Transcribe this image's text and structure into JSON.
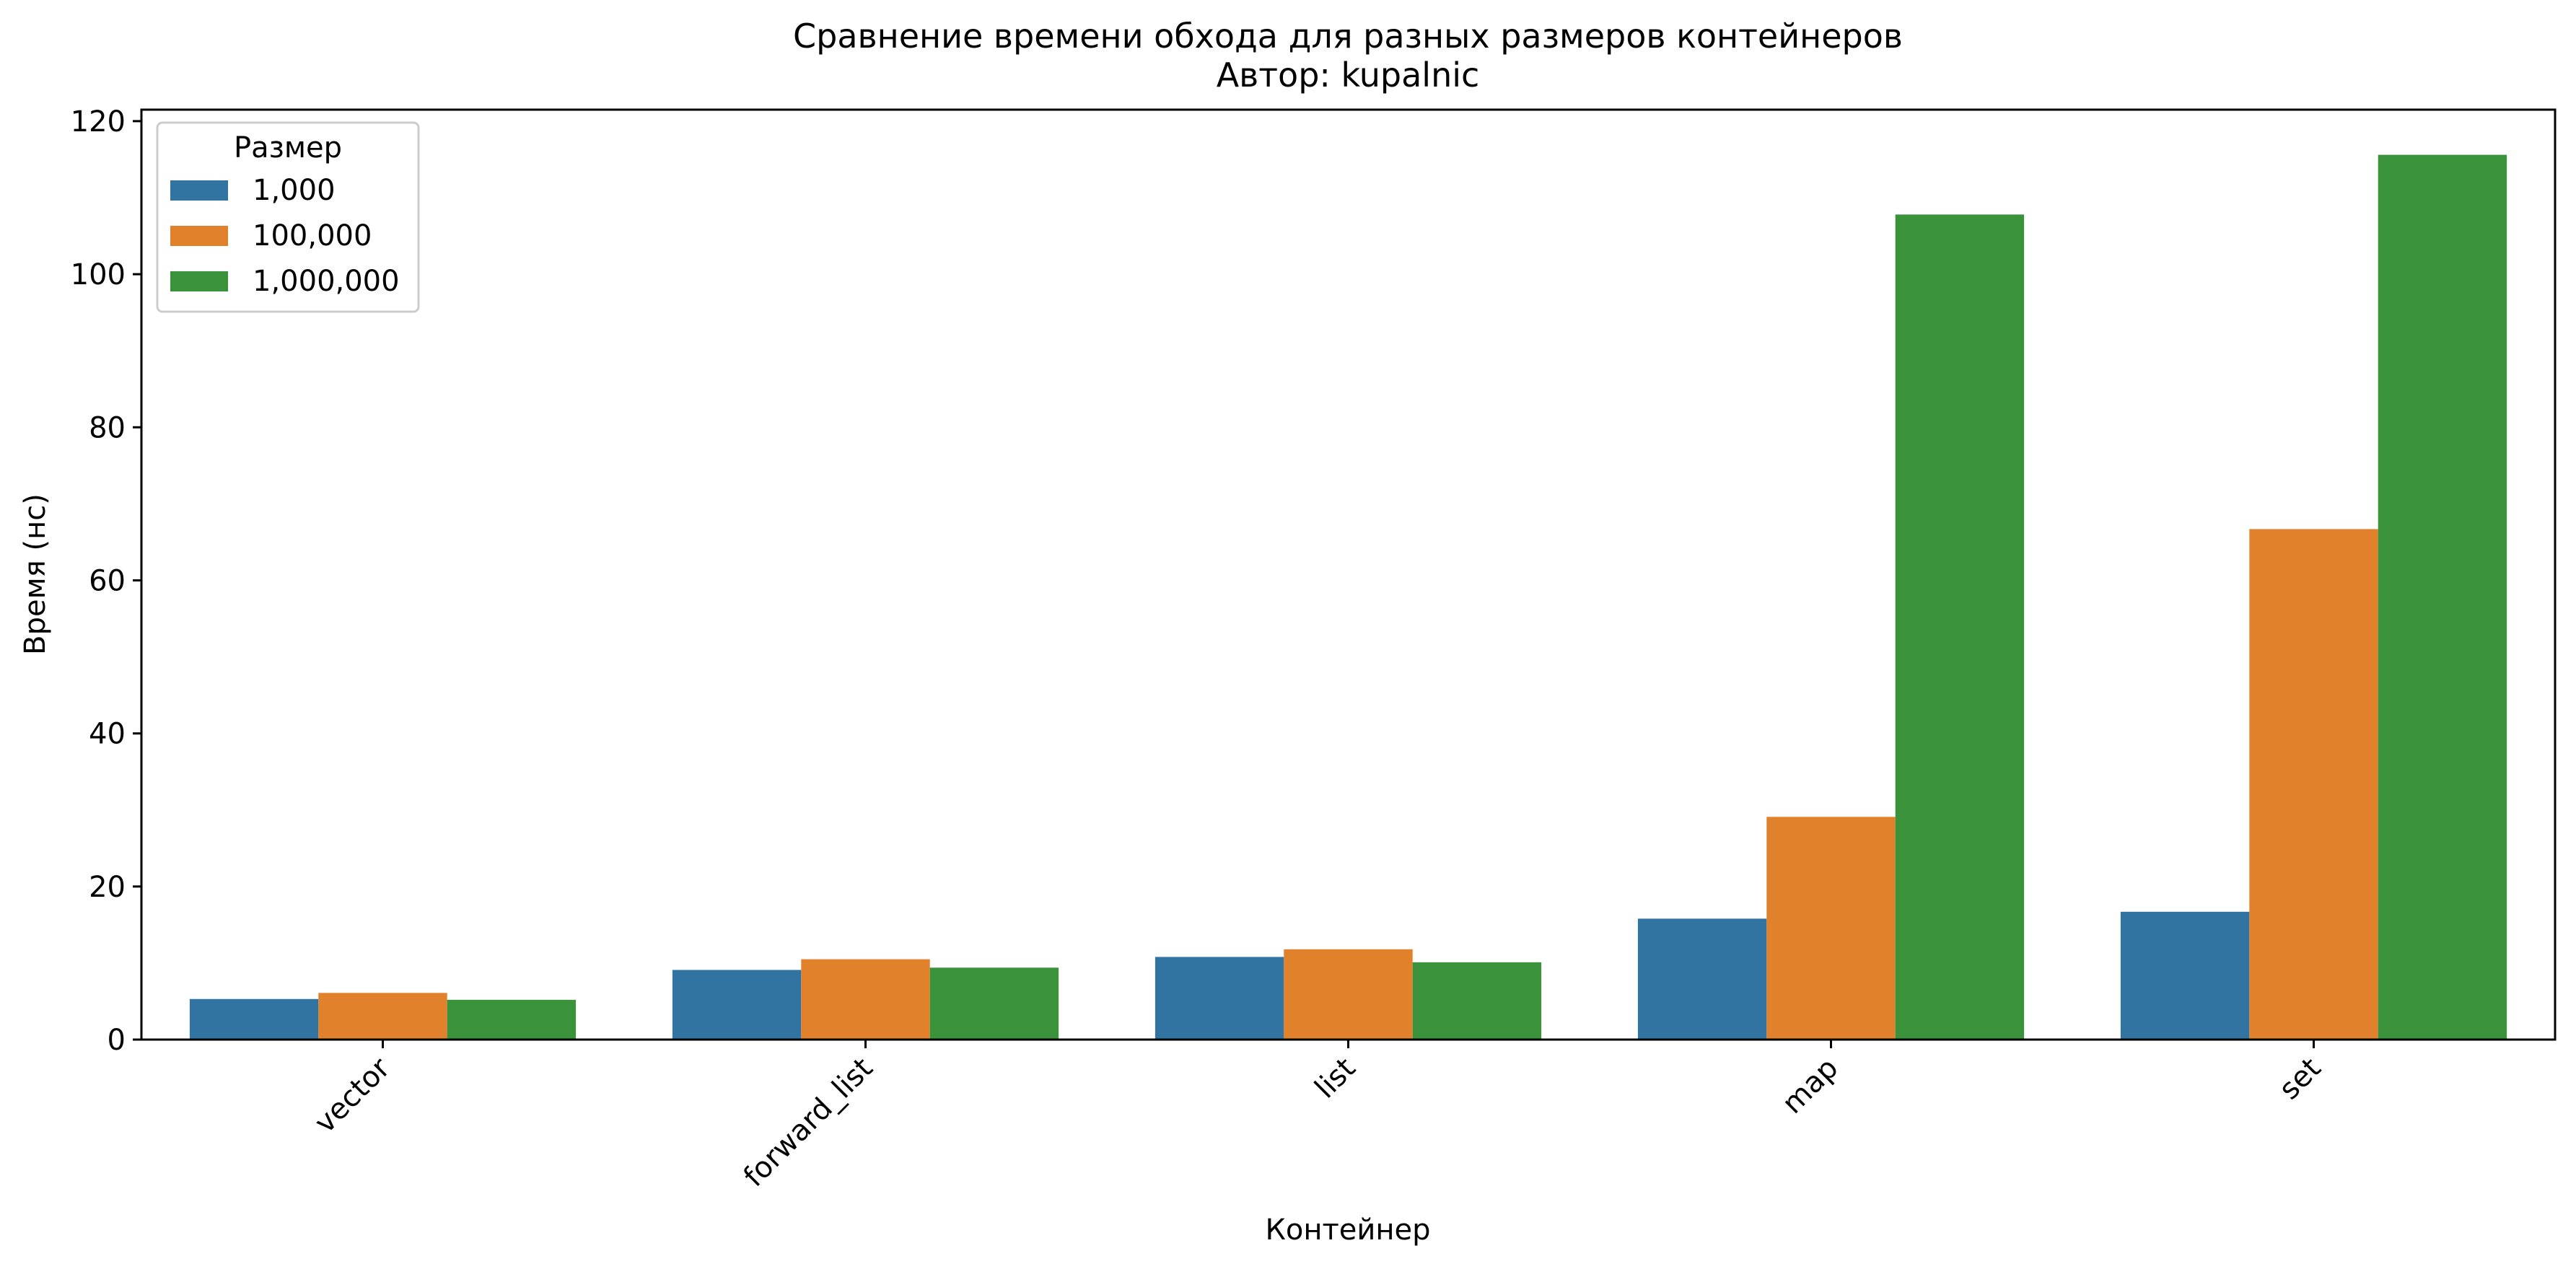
{
  "chart_data": {
    "type": "bar",
    "title": "Сравнение времени обхода для разных размеров контейнеров",
    "subtitle": "Автор: kupalnic",
    "xlabel": "Контейнер",
    "ylabel": "Время (нс)",
    "categories": [
      "vector",
      "forward_list",
      "list",
      "map",
      "set"
    ],
    "series": [
      {
        "name": "1,000",
        "color": "#3274a1",
        "values": [
          5.3,
          9.1,
          10.8,
          15.8,
          16.7
        ]
      },
      {
        "name": "100,000",
        "color": "#e1812c",
        "values": [
          6.1,
          10.5,
          11.8,
          29.1,
          66.7
        ]
      },
      {
        "name": "1,000,000",
        "color": "#3a923a",
        "values": [
          5.2,
          9.4,
          10.1,
          107.8,
          115.6
        ]
      }
    ],
    "ylim": [
      0,
      121.5
    ],
    "yticks": [
      0,
      20,
      40,
      60,
      80,
      100,
      120
    ],
    "legend": {
      "title": "Размер",
      "placement": "top-left"
    },
    "grid": false
  }
}
